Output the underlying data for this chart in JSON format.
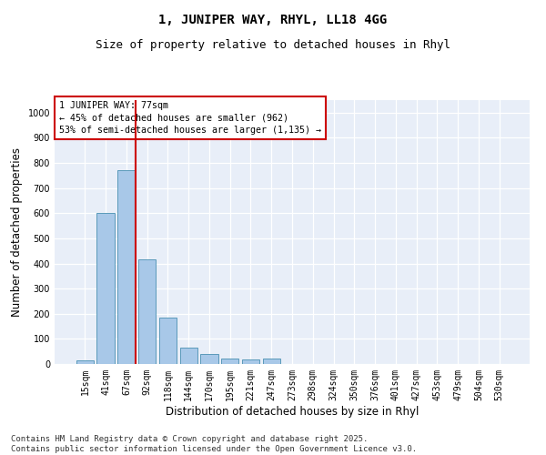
{
  "title": "1, JUNIPER WAY, RHYL, LL18 4GG",
  "subtitle": "Size of property relative to detached houses in Rhyl",
  "xlabel": "Distribution of detached houses by size in Rhyl",
  "ylabel": "Number of detached properties",
  "categories": [
    "15sqm",
    "41sqm",
    "67sqm",
    "92sqm",
    "118sqm",
    "144sqm",
    "170sqm",
    "195sqm",
    "221sqm",
    "247sqm",
    "273sqm",
    "298sqm",
    "324sqm",
    "350sqm",
    "376sqm",
    "401sqm",
    "427sqm",
    "453sqm",
    "479sqm",
    "504sqm",
    "530sqm"
  ],
  "values": [
    15,
    600,
    770,
    415,
    185,
    65,
    40,
    22,
    18,
    22,
    0,
    0,
    0,
    0,
    0,
    0,
    0,
    0,
    0,
    0,
    0
  ],
  "bar_color": "#a8c8e8",
  "bar_edge_color": "#5a9aba",
  "background_color": "#e8eef8",
  "vline_color": "#cc0000",
  "annotation_title": "1 JUNIPER WAY: 77sqm",
  "annotation_line1": "← 45% of detached houses are smaller (962)",
  "annotation_line2": "53% of semi-detached houses are larger (1,135) →",
  "annotation_box_color": "#cc0000",
  "ylim": [
    0,
    1050
  ],
  "yticks": [
    0,
    100,
    200,
    300,
    400,
    500,
    600,
    700,
    800,
    900,
    1000
  ],
  "footnote1": "Contains HM Land Registry data © Crown copyright and database right 2025.",
  "footnote2": "Contains public sector information licensed under the Open Government Licence v3.0.",
  "title_fontsize": 10,
  "subtitle_fontsize": 9,
  "tick_fontsize": 7,
  "label_fontsize": 8.5,
  "footnote_fontsize": 6.5
}
